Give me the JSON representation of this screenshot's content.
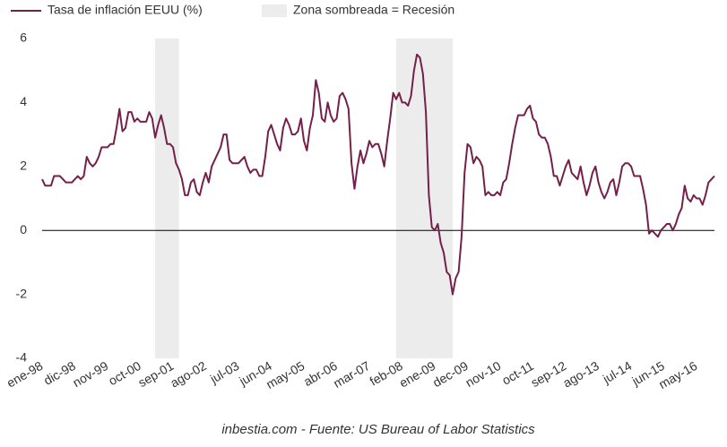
{
  "chart_data": {
    "type": "line",
    "source": "inbestia.com - Fuente: US Bureau of Labor Statistics",
    "categories": [
      "ene-98",
      null,
      null,
      null,
      null,
      null,
      null,
      null,
      null,
      null,
      null,
      "dic-98",
      null,
      null,
      null,
      null,
      null,
      null,
      null,
      null,
      null,
      null,
      "nov-99",
      null,
      null,
      null,
      null,
      null,
      null,
      null,
      null,
      null,
      null,
      "oct-00",
      null,
      null,
      null,
      null,
      null,
      null,
      null,
      null,
      null,
      null,
      "sep-01",
      null,
      null,
      null,
      null,
      null,
      null,
      null,
      null,
      null,
      null,
      "ago-02",
      null,
      null,
      null,
      null,
      null,
      null,
      null,
      null,
      null,
      null,
      "jul-03",
      null,
      null,
      null,
      null,
      null,
      null,
      null,
      null,
      null,
      null,
      "jun-04",
      null,
      null,
      null,
      null,
      null,
      null,
      null,
      null,
      null,
      null,
      "may-05",
      null,
      null,
      null,
      null,
      null,
      null,
      null,
      null,
      null,
      null,
      "abr-06",
      null,
      null,
      null,
      null,
      null,
      null,
      null,
      null,
      null,
      null,
      "mar-07",
      null,
      null,
      null,
      null,
      null,
      null,
      null,
      null,
      null,
      null,
      "feb-08",
      null,
      null,
      null,
      null,
      null,
      null,
      null,
      null,
      null,
      null,
      "ene-09",
      null,
      null,
      null,
      null,
      null,
      null,
      null,
      null,
      null,
      null,
      "dec-09",
      null,
      null,
      null,
      null,
      null,
      null,
      null,
      null,
      null,
      null,
      "nov-10",
      null,
      null,
      null,
      null,
      null,
      null,
      null,
      null,
      null,
      null,
      "oct-11",
      null,
      null,
      null,
      null,
      null,
      null,
      null,
      null,
      null,
      null,
      "sep-12",
      null,
      null,
      null,
      null,
      null,
      null,
      null,
      null,
      null,
      null,
      "ago-13",
      null,
      null,
      null,
      null,
      null,
      null,
      null,
      null,
      null,
      null,
      "jul-14",
      null,
      null,
      null,
      null,
      null,
      null,
      null,
      null,
      null,
      null,
      "jun-15",
      null,
      null,
      null,
      null,
      null,
      null,
      null,
      null,
      null,
      null,
      "may-16",
      null,
      null,
      null,
      null,
      null,
      null
    ],
    "series": [
      {
        "name": "Tasa de inflación EEUU (%)",
        "color": "#74204a",
        "values": [
          1.6,
          1.4,
          1.4,
          1.4,
          1.7,
          1.7,
          1.7,
          1.6,
          1.5,
          1.5,
          1.5,
          1.6,
          1.7,
          1.6,
          1.7,
          2.3,
          2.1,
          2.0,
          2.1,
          2.3,
          2.6,
          2.6,
          2.6,
          2.7,
          2.7,
          3.2,
          3.8,
          3.1,
          3.2,
          3.7,
          3.7,
          3.4,
          3.5,
          3.4,
          3.4,
          3.4,
          3.7,
          3.5,
          2.9,
          3.3,
          3.6,
          3.2,
          2.7,
          2.7,
          2.6,
          2.1,
          1.9,
          1.6,
          1.1,
          1.1,
          1.5,
          1.6,
          1.2,
          1.1,
          1.5,
          1.8,
          1.5,
          2.0,
          2.2,
          2.4,
          2.6,
          3.0,
          3.0,
          2.2,
          2.1,
          2.1,
          2.1,
          2.2,
          2.3,
          2.0,
          1.8,
          1.9,
          1.9,
          1.7,
          1.7,
          2.3,
          3.1,
          3.3,
          3.0,
          2.7,
          2.5,
          3.2,
          3.5,
          3.3,
          3.0,
          3.0,
          3.1,
          3.5,
          2.8,
          2.5,
          3.2,
          3.6,
          4.7,
          4.3,
          3.5,
          3.4,
          4.0,
          3.6,
          3.4,
          3.5,
          4.2,
          4.3,
          4.1,
          3.8,
          2.1,
          1.3,
          2.0,
          2.5,
          2.1,
          2.4,
          2.8,
          2.6,
          2.7,
          2.7,
          2.4,
          2.0,
          2.8,
          3.5,
          4.3,
          4.1,
          4.3,
          4.0,
          4.0,
          3.9,
          4.2,
          5.0,
          5.5,
          5.4,
          4.9,
          3.7,
          1.1,
          0.1,
          0.0,
          0.2,
          -0.4,
          -0.7,
          -1.3,
          -1.4,
          -2.0,
          -1.5,
          -1.3,
          -0.2,
          1.8,
          2.7,
          2.6,
          2.1,
          2.3,
          2.2,
          2.0,
          1.1,
          1.2,
          1.1,
          1.1,
          1.2,
          1.1,
          1.5,
          1.6,
          2.1,
          2.7,
          3.2,
          3.6,
          3.6,
          3.6,
          3.8,
          3.9,
          3.5,
          3.4,
          3.0,
          2.9,
          2.9,
          2.7,
          2.3,
          1.7,
          1.7,
          1.4,
          1.7,
          2.0,
          2.2,
          1.8,
          1.7,
          1.6,
          2.0,
          1.5,
          1.1,
          1.4,
          1.8,
          2.0,
          1.5,
          1.2,
          1.0,
          1.2,
          1.5,
          1.6,
          1.1,
          1.5,
          2.0,
          2.1,
          2.1,
          2.0,
          1.7,
          1.7,
          1.7,
          1.3,
          0.8,
          -0.1,
          0.0,
          -0.1,
          -0.2,
          0.0,
          0.1,
          0.2,
          0.2,
          0.0,
          0.2,
          0.5,
          0.7,
          1.4,
          1.0,
          0.9,
          1.1,
          1.0,
          1.0,
          0.8,
          1.1,
          1.5,
          1.6,
          1.7
        ]
      }
    ],
    "shading": {
      "name": "Zona sombreada = Recesión",
      "color": "#ececec",
      "spans": [
        [
          38,
          46
        ],
        [
          119,
          138
        ]
      ]
    },
    "ylim": [
      -4,
      6
    ],
    "yticks": [
      -4,
      -2,
      0,
      2,
      4,
      6
    ],
    "grid": false
  }
}
